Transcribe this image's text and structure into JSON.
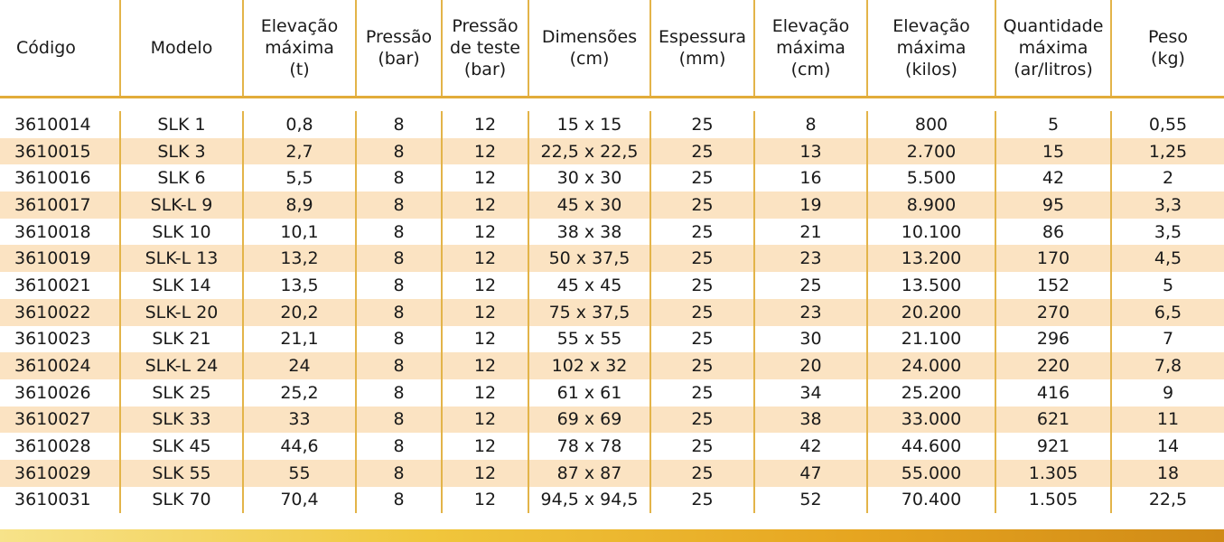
{
  "table": {
    "headers": [
      [
        "Código"
      ],
      [
        "Modelo"
      ],
      [
        "Elevação",
        "máxima",
        "(t)"
      ],
      [
        "Pressão",
        "(bar)"
      ],
      [
        "Pressão",
        "de teste",
        "(bar)"
      ],
      [
        "Dimensões",
        "(cm)"
      ],
      [
        "Espessura",
        "(mm)"
      ],
      [
        "Elevação",
        "máxima",
        "(cm)"
      ],
      [
        "Elevação",
        "máxima",
        "(kilos)"
      ],
      [
        "Quantidade",
        "máxima",
        "(ar/litros)"
      ],
      [
        "Peso",
        "(kg)"
      ]
    ],
    "rows": [
      [
        "3610014",
        "SLK 1",
        "0,8",
        "8",
        "12",
        "15 x 15",
        "25",
        "8",
        "800",
        "5",
        "0,55"
      ],
      [
        "3610015",
        "SLK 3",
        "2,7",
        "8",
        "12",
        "22,5 x 22,5",
        "25",
        "13",
        "2.700",
        "15",
        "1,25"
      ],
      [
        "3610016",
        "SLK 6",
        "5,5",
        "8",
        "12",
        "30 x 30",
        "25",
        "16",
        "5.500",
        "42",
        "2"
      ],
      [
        "3610017",
        "SLK-L 9",
        "8,9",
        "8",
        "12",
        "45 x 30",
        "25",
        "19",
        "8.900",
        "95",
        "3,3"
      ],
      [
        "3610018",
        "SLK 10",
        "10,1",
        "8",
        "12",
        "38 x 38",
        "25",
        "21",
        "10.100",
        "86",
        "3,5"
      ],
      [
        "3610019",
        "SLK-L 13",
        "13,2",
        "8",
        "12",
        "50 x 37,5",
        "25",
        "23",
        "13.200",
        "170",
        "4,5"
      ],
      [
        "3610021",
        "SLK 14",
        "13,5",
        "8",
        "12",
        "45 x 45",
        "25",
        "25",
        "13.500",
        "152",
        "5"
      ],
      [
        "3610022",
        "SLK-L 20",
        "20,2",
        "8",
        "12",
        "75 x 37,5",
        "25",
        "23",
        "20.200",
        "270",
        "6,5"
      ],
      [
        "3610023",
        "SLK 21",
        "21,1",
        "8",
        "12",
        "55 x 55",
        "25",
        "30",
        "21.100",
        "296",
        "7"
      ],
      [
        "3610024",
        "SLK-L 24",
        "24",
        "8",
        "12",
        "102 x 32",
        "25",
        "20",
        "24.000",
        "220",
        "7,8"
      ],
      [
        "3610026",
        "SLK 25",
        "25,2",
        "8",
        "12",
        "61 x 61",
        "25",
        "34",
        "25.200",
        "416",
        "9"
      ],
      [
        "3610027",
        "SLK 33",
        "33",
        "8",
        "12",
        "69 x 69",
        "25",
        "38",
        "33.000",
        "621",
        "11"
      ],
      [
        "3610028",
        "SLK 45",
        "44,6",
        "8",
        "12",
        "78 x 78",
        "25",
        "42",
        "44.600",
        "921",
        "14"
      ],
      [
        "3610029",
        "SLK 55",
        "55",
        "8",
        "12",
        "87 x 87",
        "25",
        "47",
        "55.000",
        "1.305",
        "18"
      ],
      [
        "3610031",
        "SLK 70",
        "70,4",
        "8",
        "12",
        "94,5 x 94,5",
        "25",
        "52",
        "70.400",
        "1.505",
        "22,5"
      ]
    ]
  },
  "colors": {
    "divider": "#e3b449",
    "header_rule": "#e2ac3a",
    "stripe": "#fbe3c2",
    "bar_start": "#f7e38a",
    "bar_end": "#d08a16"
  }
}
